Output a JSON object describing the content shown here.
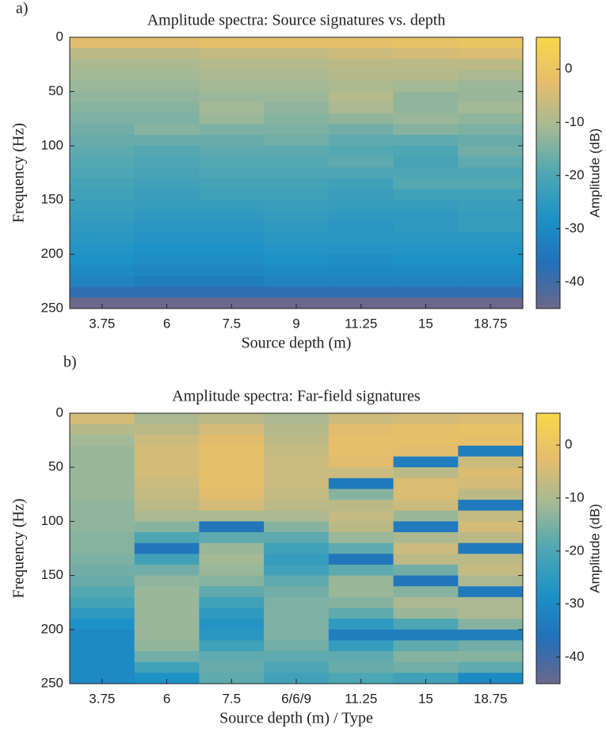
{
  "chart_data": [
    {
      "type": "heatmap",
      "panel_label": "a)",
      "title": "Amplitude spectra: Source signatures vs. depth",
      "xlabel": "Source depth (m)",
      "ylabel": "Frequency (Hz)",
      "clabel": "Amplitude (dB)",
      "categories": [
        "3.75",
        "6",
        "7.5",
        "9",
        "11.25",
        "15",
        "18.75"
      ],
      "y_edges": [
        0,
        10,
        20,
        30,
        40,
        50,
        60,
        70,
        80,
        90,
        100,
        110,
        120,
        130,
        140,
        150,
        160,
        170,
        180,
        190,
        200,
        210,
        220,
        230,
        240,
        250
      ],
      "z": [
        [
          -3,
          -8,
          -10,
          -11,
          -12,
          -13,
          -14,
          -15,
          -16,
          -17,
          -18,
          -19,
          -20,
          -21,
          -22,
          -23,
          -24,
          -25,
          -26,
          -27,
          -28,
          -30,
          -32,
          -38,
          -45
        ],
        [
          -3,
          -8,
          -10,
          -11,
          -12,
          -13,
          -14,
          -15,
          -14,
          -17,
          -19,
          -20,
          -21,
          -22,
          -23,
          -24,
          -25,
          -26,
          -27,
          -28,
          -29,
          -31,
          -33,
          -38,
          -45
        ],
        [
          -2,
          -7,
          -9,
          -10,
          -11,
          -12,
          -11,
          -12,
          -15,
          -17,
          -18,
          -19,
          -20,
          -21,
          -22,
          -24,
          -25,
          -26,
          -27,
          -28,
          -29,
          -31,
          -33,
          -38,
          -45
        ],
        [
          -2,
          -7,
          -9,
          -10,
          -11,
          -12,
          -13,
          -14,
          -15,
          -16,
          -18,
          -19,
          -20,
          -21,
          -22,
          -23,
          -24,
          -25,
          -26,
          -27,
          -28,
          -30,
          -32,
          -38,
          -45
        ],
        [
          -2,
          -6,
          -8,
          -9,
          -10,
          -9,
          -10,
          -13,
          -16,
          -18,
          -19,
          -18,
          -20,
          -22,
          -23,
          -24,
          -25,
          -26,
          -26,
          -27,
          -29,
          -30,
          -32,
          -38,
          -45
        ],
        [
          -1,
          -5,
          -8,
          -9,
          -11,
          -13,
          -13,
          -12,
          -14,
          -18,
          -20,
          -21,
          -20,
          -19,
          -22,
          -24,
          -25,
          -25,
          -26,
          -27,
          -28,
          -30,
          -32,
          -38,
          -45
        ],
        [
          0,
          -4,
          -8,
          -10,
          -12,
          -12,
          -11,
          -13,
          -15,
          -17,
          -16,
          -18,
          -20,
          -19,
          -22,
          -23,
          -24,
          -24,
          -26,
          -27,
          -28,
          -30,
          -32,
          -38,
          -45
        ]
      ],
      "ylim": [
        0,
        250
      ],
      "yticks": [
        0,
        50,
        100,
        150,
        200,
        250
      ],
      "clim": [
        -45,
        6
      ],
      "cticks": [
        0,
        -10,
        -20,
        -30,
        -40
      ],
      "colormap": [
        "#6b678c",
        "#2370b8",
        "#1d92c6",
        "#4fa7b3",
        "#a4b995",
        "#e6bd6c",
        "#f8d84a"
      ]
    },
    {
      "type": "heatmap",
      "panel_label": "b)",
      "title": "Amplitude spectra: Far-field signatures",
      "xlabel": "Source depth (m) / Type",
      "ylabel": "Frequency (Hz)",
      "clabel": "Amplitude (dB)",
      "categories": [
        "3.75",
        "6",
        "7.5",
        "6/6/9",
        "11.25",
        "15",
        "18.75"
      ],
      "y_edges": [
        0,
        10,
        20,
        30,
        40,
        50,
        60,
        70,
        80,
        90,
        100,
        110,
        120,
        130,
        140,
        150,
        160,
        170,
        180,
        190,
        200,
        210,
        220,
        230,
        240,
        250
      ],
      "z": [
        [
          -5,
          -9,
          -11,
          -12,
          -12,
          -12,
          -12,
          -12,
          -13,
          -13,
          -13,
          -14,
          -14,
          -15,
          -16,
          -17,
          -19,
          -21,
          -25,
          -28,
          -30,
          -30,
          -30,
          -30,
          -30
        ],
        [
          -10,
          -8,
          -6,
          -5,
          -5,
          -5,
          -6,
          -7,
          -8,
          -10,
          -14,
          -20,
          -35,
          -22,
          -16,
          -13,
          -12,
          -12,
          -12,
          -12,
          -12,
          -13,
          -16,
          -22,
          -28
        ],
        [
          -8,
          -5,
          -3,
          -2,
          -2,
          -2,
          -2,
          -3,
          -5,
          -10,
          -35,
          -18,
          -12,
          -11,
          -12,
          -14,
          -18,
          -22,
          -25,
          -27,
          -26,
          -22,
          -18,
          -17,
          -18
        ],
        [
          -10,
          -9,
          -8,
          -7,
          -6,
          -6,
          -6,
          -7,
          -8,
          -10,
          -14,
          -18,
          -22,
          -24,
          -22,
          -18,
          -16,
          -15,
          -15,
          -15,
          -15,
          -16,
          -18,
          -20,
          -22
        ],
        [
          -6,
          -3,
          -2,
          -2,
          -3,
          -6,
          -34,
          -14,
          -8,
          -7,
          -8,
          -12,
          -18,
          -35,
          -18,
          -12,
          -12,
          -14,
          -18,
          -25,
          -33,
          -24,
          -18,
          -17,
          -20
        ],
        [
          -5,
          -2,
          -2,
          -3,
          -33,
          -8,
          -4,
          -4,
          -6,
          -12,
          -34,
          -10,
          -6,
          -8,
          -16,
          -35,
          -14,
          -10,
          -12,
          -20,
          -33,
          -18,
          -14,
          -16,
          -22
        ],
        [
          -4,
          -1,
          -2,
          -33,
          -6,
          -4,
          -5,
          -8,
          -34,
          -7,
          -5,
          -8,
          -34,
          -8,
          -7,
          -10,
          -34,
          -10,
          -10,
          -14,
          -33,
          -16,
          -14,
          -18,
          -30
        ]
      ],
      "ylim": [
        0,
        250
      ],
      "yticks": [
        0,
        50,
        100,
        150,
        200,
        250
      ],
      "clim": [
        -45,
        6
      ],
      "cticks": [
        0,
        -10,
        -20,
        -30,
        -40
      ],
      "colormap": [
        "#6b678c",
        "#2370b8",
        "#1d92c6",
        "#4fa7b3",
        "#a4b995",
        "#e6bd6c",
        "#f8d84a"
      ]
    }
  ]
}
